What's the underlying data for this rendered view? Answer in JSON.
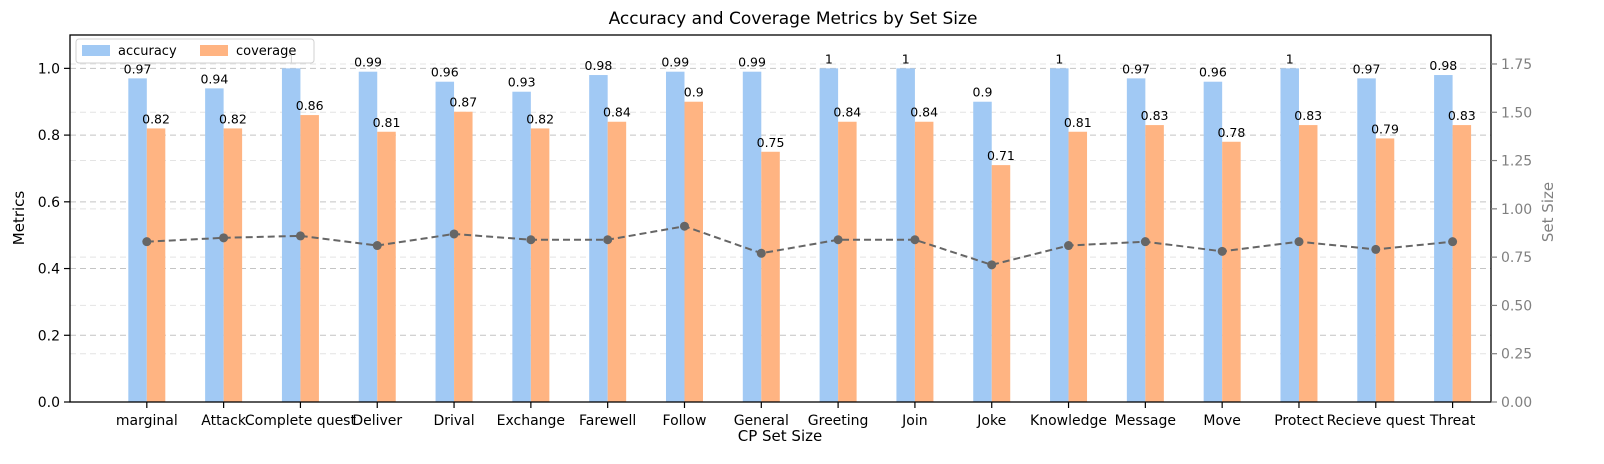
{
  "chart_data": {
    "type": "bar",
    "title": "Accuracy and Coverage Metrics by Set Size",
    "xlabel": "CP Set Size",
    "ylabel": "Metrics",
    "y2label": "Set Size",
    "ylim": [
      0,
      1.1
    ],
    "y2lim": [
      0,
      1.9
    ],
    "yticks": [
      "0.0",
      "0.2",
      "0.4",
      "0.6",
      "0.8",
      "1.0"
    ],
    "y2ticks": [
      "0.00",
      "0.25",
      "0.50",
      "0.75",
      "1.00",
      "1.25",
      "1.50",
      "1.75"
    ],
    "grid": true,
    "legend_position": "top-left",
    "categories": [
      "marginal",
      "Attack",
      "Complete quest",
      "Deliver",
      "Drival",
      "Exchange",
      "Farewell",
      "Follow",
      "General",
      "Greeting",
      "Join",
      "Joke",
      "Knowledge",
      "Message",
      "Move",
      "Protect",
      "Recieve quest",
      "Threat"
    ],
    "series": [
      {
        "name": "accuracy",
        "color": "#a1c9f4",
        "values": [
          0.97,
          0.94,
          1.0,
          0.99,
          0.96,
          0.93,
          0.98,
          0.99,
          0.99,
          1.0,
          1.0,
          0.9,
          1.0,
          0.97,
          0.96,
          1.0,
          0.97,
          0.98
        ],
        "labels": [
          "0.97",
          "0.94",
          "1",
          "0.99",
          "0.96",
          "0.93",
          "0.98",
          "0.99",
          "0.99",
          "1",
          "1",
          "0.9",
          "1",
          "0.97",
          "0.96",
          "1",
          "0.97",
          "0.98"
        ]
      },
      {
        "name": "coverage",
        "color": "#ffb482",
        "values": [
          0.82,
          0.82,
          0.86,
          0.81,
          0.87,
          0.82,
          0.84,
          0.9,
          0.75,
          0.84,
          0.84,
          0.71,
          0.81,
          0.83,
          0.78,
          0.83,
          0.79,
          0.83
        ],
        "labels": [
          "0.82",
          "0.82",
          "0.86",
          "0.81",
          "0.87",
          "0.82",
          "0.84",
          "0.9",
          "0.75",
          "0.84",
          "0.84",
          "0.71",
          "0.81",
          "0.83",
          "0.78",
          "0.83",
          "0.79",
          "0.83"
        ]
      }
    ],
    "set_size_line": {
      "color": "#666666",
      "values": [
        0.83,
        0.85,
        0.86,
        0.81,
        0.87,
        0.84,
        0.84,
        0.91,
        0.77,
        0.84,
        0.84,
        0.71,
        0.81,
        0.83,
        0.78,
        0.83,
        0.79,
        0.83
      ]
    }
  }
}
